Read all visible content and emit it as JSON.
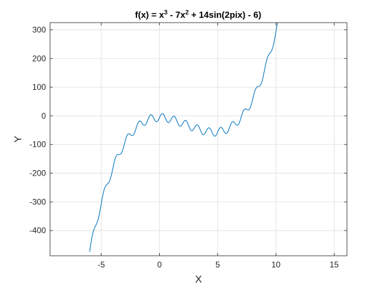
{
  "chart_data": {
    "type": "line",
    "title": "f(x) = x^3 - 7x^2 + 14sin(2pix) - 6)",
    "title_parts": {
      "p1": "f(x) = x",
      "sup1": "3",
      "p2": " - 7x",
      "sup2": "2",
      "p3": " + 14sin(2pix) - 6)"
    },
    "xlabel": "X",
    "ylabel": "Y",
    "xlim": [
      -9.4,
      16.1
    ],
    "ylim": [
      -488,
      325
    ],
    "xticks": [
      -5,
      0,
      5,
      10,
      15
    ],
    "xtick_labels": [
      "-5",
      "0",
      "5",
      "10",
      "15"
    ],
    "yticks": [
      -400,
      -300,
      -200,
      -100,
      0,
      100,
      200,
      300
    ],
    "ytick_labels": [
      "-400",
      "-300",
      "-200",
      "-100",
      "0",
      "100",
      "200",
      "300"
    ],
    "grid": true,
    "function": {
      "expression": "x^3 - 7x^2 + 14sin(2pix) - 6",
      "x_range": [
        -6,
        10.5
      ],
      "samples": 1200
    },
    "series": [
      {
        "color": "#0072BD"
      }
    ]
  }
}
